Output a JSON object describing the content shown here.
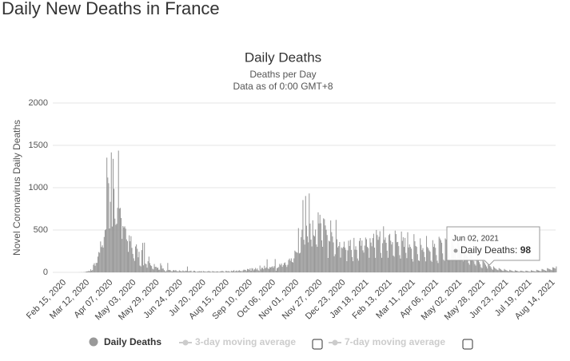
{
  "page_title": "Daily New Deaths in France",
  "chart_data": {
    "type": "bar",
    "title": "Daily Deaths",
    "subtitle": [
      "Deaths per Day",
      "Data as of 0:00 GMT+8"
    ],
    "y_label": "Novel Coronavirus Daily Deaths",
    "ylim": [
      0,
      2000
    ],
    "yticks": [
      0,
      500,
      1000,
      1500,
      2000
    ],
    "grid": true,
    "categories": [
      "Feb 15, 2020",
      null,
      null,
      null,
      null,
      null,
      null,
      null,
      null,
      null,
      null,
      null,
      null,
      null,
      null,
      null,
      null,
      null,
      null,
      null,
      null,
      null,
      null,
      null,
      null,
      null,
      "Mar 12, 2020",
      null,
      null,
      null,
      null,
      null,
      null,
      null,
      null,
      null,
      null,
      null,
      null,
      null,
      null,
      null,
      null,
      null,
      null,
      null,
      null,
      null,
      null,
      null,
      null,
      null,
      "Apr 07, 2020",
      null,
      null,
      null,
      null,
      null,
      null,
      null,
      null,
      null,
      null,
      null,
      null,
      null,
      null,
      null,
      null,
      null,
      null,
      null,
      null,
      null,
      null,
      null,
      null,
      null,
      "May 03, 2020",
      null,
      null,
      null,
      null,
      null,
      null,
      null,
      null,
      null,
      null,
      null,
      null,
      null,
      null,
      null,
      null,
      null,
      null,
      null,
      null,
      null,
      null,
      null,
      null,
      null,
      "May 29, 2020",
      null,
      null,
      null,
      null,
      null,
      null,
      null,
      null,
      null,
      null,
      null,
      null,
      null,
      null,
      null,
      null,
      null,
      null,
      null,
      null,
      null,
      null,
      null,
      null,
      null,
      "Jun 24, 2020",
      null,
      null,
      null,
      null,
      null,
      null,
      null,
      null,
      null,
      null,
      null,
      null,
      null,
      null,
      null,
      null,
      null,
      null,
      null,
      null,
      null,
      null,
      null,
      null,
      null,
      "Jul 20, 2020",
      null,
      null,
      null,
      null,
      null,
      null,
      null,
      null,
      null,
      null,
      null,
      null,
      null,
      null,
      null,
      null,
      null,
      null,
      null,
      null,
      null,
      null,
      null,
      null,
      null,
      "Aug 15, 2020",
      null,
      null,
      null,
      null,
      null,
      null,
      null,
      null,
      null,
      null,
      null,
      null,
      null,
      null,
      null,
      null,
      null,
      null,
      null,
      null,
      null,
      null,
      null,
      null,
      null,
      "Sep 10, 2020",
      null,
      null,
      null,
      null,
      null,
      null,
      null,
      null,
      null,
      null,
      null,
      null,
      null,
      null,
      null,
      null,
      null,
      null,
      null,
      null,
      null,
      null,
      null,
      null,
      null,
      "Oct 06, 2020",
      null,
      null,
      null,
      null,
      null,
      null,
      null,
      null,
      null,
      null,
      null,
      null,
      null,
      null,
      null,
      null,
      null,
      null,
      null,
      null,
      null,
      null,
      null,
      null,
      null,
      "Nov 01, 2020",
      null,
      null,
      null,
      null,
      null,
      null,
      null,
      null,
      null,
      null,
      null,
      null,
      null,
      null,
      null,
      null,
      null,
      null,
      null,
      null,
      null,
      null,
      null,
      null,
      null,
      "Nov 27, 2020",
      null,
      null,
      null,
      null,
      null,
      null,
      null,
      null,
      null,
      null,
      null,
      null,
      null,
      null,
      null,
      null,
      null,
      null,
      null,
      null,
      null,
      null,
      null,
      null,
      null,
      "Dec 23, 2020",
      null,
      null,
      null,
      null,
      null,
      null,
      null,
      null,
      null,
      null,
      null,
      null,
      null,
      null,
      null,
      null,
      null,
      null,
      null,
      null,
      null,
      null,
      null,
      null,
      null,
      "Jan 18, 2021",
      null,
      null,
      null,
      null,
      null,
      null,
      null,
      null,
      null,
      null,
      null,
      null,
      null,
      null,
      null,
      null,
      null,
      null,
      null,
      null,
      null,
      null,
      null,
      null,
      null,
      "Feb 13, 2021",
      null,
      null,
      null,
      null,
      null,
      null,
      null,
      null,
      null,
      null,
      null,
      null,
      null,
      null,
      null,
      null,
      null,
      null,
      null,
      null,
      null,
      null,
      null,
      null,
      null,
      "Mar 11, 2021",
      null,
      null,
      null,
      null,
      null,
      null,
      null,
      null,
      null,
      null,
      null,
      null,
      null,
      null,
      null,
      null,
      null,
      null,
      null,
      null,
      null,
      null,
      null,
      null,
      null,
      "Apr 06, 2021",
      null,
      null,
      null,
      null,
      null,
      null,
      null,
      null,
      null,
      null,
      null,
      null,
      null,
      null,
      null,
      null,
      null,
      null,
      null,
      null,
      null,
      null,
      null,
      null,
      null,
      "May 02, 2021",
      null,
      null,
      null,
      null,
      null,
      null,
      null,
      null,
      null,
      null,
      null,
      null,
      null,
      null,
      null,
      null,
      null,
      null,
      null,
      null,
      null,
      null,
      null,
      null,
      null,
      "May 28, 2021",
      null,
      null,
      null,
      null,
      null,
      null,
      null,
      null,
      null,
      null,
      null,
      null,
      null,
      null,
      null,
      null,
      null,
      null,
      null,
      null,
      null,
      null,
      null,
      null,
      null,
      "Jun 23, 2021",
      null,
      null,
      null,
      null,
      null,
      null,
      null,
      null,
      null,
      null,
      null,
      null,
      null,
      null,
      null,
      null,
      null,
      null,
      null,
      null,
      null,
      null,
      null,
      null,
      null,
      "Jul 19, 2021",
      null,
      null,
      null,
      null,
      null,
      null,
      null,
      null,
      null,
      null,
      null,
      null,
      null,
      null,
      null,
      null,
      null,
      null,
      null,
      null,
      null,
      null,
      null,
      null,
      null,
      "Aug 14, 2021",
      null,
      null,
      null
    ],
    "series": [
      {
        "name": "Daily Deaths",
        "color": "#999999",
        "values": [
          0,
          0,
          0,
          0,
          0,
          0,
          0,
          0,
          0,
          0,
          0,
          0,
          0,
          0,
          0,
          0,
          1,
          0,
          1,
          2,
          0,
          2,
          3,
          4,
          9,
          11,
          13,
          18,
          12,
          36,
          21,
          27,
          89,
          108,
          78,
          112,
          112,
          186,
          240,
          231,
          365,
          299,
          319,
          292,
          418,
          499,
          509,
          1355,
          1120,
          1053,
          518,
          833,
          1417,
          541,
          1341,
          987,
          635,
          561,
          574,
          762,
          1438,
          753,
          761,
          642,
          395,
          547,
          531,
          544,
          516,
          389,
          369,
          242,
          437,
          367,
          427,
          289,
          218,
          166,
          135,
          306,
          330,
          278,
          178,
          243,
          80,
          70,
          263,
          348,
          83,
          351,
          104,
          96,
          55,
          131,
          186,
          110,
          83,
          74,
          43,
          35,
          98,
          65,
          66,
          52,
          57,
          31,
          31,
          107,
          81,
          44,
          46,
          27,
          13,
          9,
          23,
          111,
          28,
          29,
          24,
          14,
          10,
          24,
          27,
          18,
          28,
          14,
          12,
          11,
          24,
          15,
          14,
          11,
          23,
          14,
          12,
          20,
          17,
          69,
          12,
          14,
          16,
          20,
          5,
          6,
          19,
          18,
          10,
          4,
          11,
          9,
          14,
          13,
          11,
          14,
          4,
          16,
          10,
          11,
          5,
          10,
          14,
          15,
          10,
          8,
          5,
          14,
          12,
          9,
          7,
          10,
          11,
          11,
          6,
          8,
          12,
          14,
          17,
          12,
          6,
          2,
          18,
          15,
          11,
          16,
          9,
          4,
          20,
          12,
          18,
          26,
          8,
          16,
          22,
          11,
          20,
          25,
          13,
          19,
          7,
          22,
          32,
          30,
          27,
          14,
          40,
          38,
          30,
          47,
          19,
          50,
          44,
          24,
          36,
          52,
          33,
          46,
          26,
          17,
          80,
          35,
          54,
          52,
          37,
          78,
          48,
          59,
          154,
          46,
          40,
          62,
          58,
          64,
          72,
          54,
          73,
          157,
          19,
          49,
          55,
          63,
          100,
          84,
          104,
          65,
          85,
          109,
          117,
          88,
          64,
          89,
          146,
          163,
          137,
          165,
          123,
          116,
          165,
          257,
          244,
          235,
          231,
          523,
          224,
          231,
          416,
          505,
          854,
          385,
          328,
          902,
          551,
          425,
          354,
          932,
          576,
          386,
          306,
          615,
          437,
          425,
          506,
          329,
          302,
          709,
          578,
          680,
          580,
          378,
          302,
          638,
          628,
          554,
          504,
          441,
          170,
          374,
          365,
          613,
          475,
          424,
          354,
          190,
          213,
          620,
          391,
          295,
          311,
          358,
          174,
          294,
          283,
          300,
          363,
          293,
          267,
          132,
          260,
          374,
          311,
          383,
          265,
          181,
          132,
          407,
          268,
          308,
          266,
          164,
          138,
          371,
          406,
          314,
          376,
          260,
          233,
          316,
          411,
          391,
          301,
          287,
          172,
          403,
          352,
          308,
          405,
          456,
          292,
          171,
          501,
          441,
          384,
          420,
          486,
          230,
          172,
          345,
          544,
          384,
          412,
          349,
          256,
          172,
          440,
          455,
          374,
          329,
          357,
          198,
          185,
          493,
          452,
          356,
          360,
          310,
          203,
          163,
          482,
          372,
          414,
          301,
          407,
          230,
          168,
          474,
          294,
          330,
          301,
          280,
          159,
          127,
          451,
          367,
          312,
          301,
          215,
          142,
          135,
          402,
          324,
          263,
          286,
          242,
          180,
          130,
          430,
          300,
          285,
          260,
          244,
          138,
          124,
          380,
          301,
          337,
          290,
          204,
          138,
          110,
          420,
          400,
          380,
          350,
          224,
          150,
          137,
          401,
          388,
          343,
          260,
          225,
          148,
          140,
          430,
          380,
          320,
          290,
          270,
          173,
          150,
          400,
          350,
          310,
          280,
          232,
          150,
          130,
          340,
          310,
          280,
          200,
          180,
          110,
          90,
          290,
          270,
          200,
          160,
          130,
          98,
          80,
          230,
          200,
          150,
          120,
          95,
          60,
          50,
          160,
          130,
          110,
          90,
          70,
          45,
          98,
          80,
          75,
          60,
          40,
          30,
          70,
          55,
          45,
          40,
          30,
          25,
          50,
          42,
          35,
          25,
          20,
          18,
          40,
          30,
          25,
          20,
          15,
          12,
          30,
          25,
          20,
          15,
          12,
          10,
          25,
          20,
          18,
          15,
          10,
          8,
          20,
          18,
          15,
          12,
          10,
          8,
          20,
          18,
          15,
          12,
          10,
          8,
          25,
          20,
          18,
          15,
          12,
          10,
          30,
          25,
          22,
          18,
          15,
          12,
          40,
          35,
          30,
          25,
          20,
          15,
          50,
          45,
          40,
          35,
          30,
          25,
          60,
          55,
          50,
          45,
          70
        ]
      }
    ],
    "hidden_series": [
      "3-day moving average",
      "7-day moving average"
    ],
    "tooltip": {
      "date": "Jun 02, 2021",
      "label": "Daily Deaths:",
      "value": 98
    }
  }
}
